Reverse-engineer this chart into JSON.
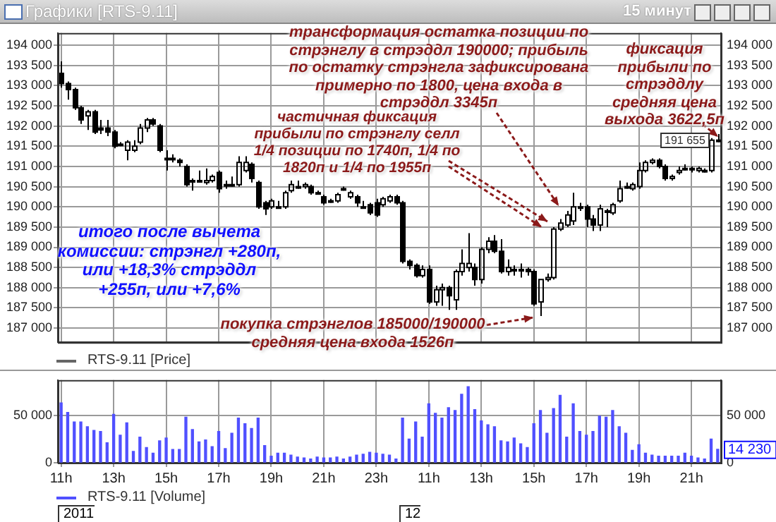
{
  "chart_data": [
    {
      "type": "candlestick",
      "title": "Графики [RTS-9.11]",
      "subtitle": "15 минут",
      "categories": [
        null,
        null,
        null,
        null,
        null,
        null,
        null,
        null,
        null,
        null,
        null,
        null,
        null,
        null,
        null,
        null,
        null,
        null,
        null,
        null,
        null,
        null,
        null,
        null,
        null,
        null,
        null,
        null,
        null,
        null,
        null,
        null,
        null,
        null,
        null,
        null,
        null,
        null,
        null,
        null,
        null,
        null,
        null,
        null,
        null,
        null,
        null,
        null,
        null,
        null,
        null,
        null,
        null,
        null,
        null,
        null,
        null,
        null,
        null,
        null,
        null,
        null,
        null,
        null,
        null,
        null,
        null,
        null,
        null,
        null,
        null,
        null,
        null,
        null,
        null,
        null,
        null,
        null,
        null,
        null,
        null,
        null,
        null,
        null,
        null,
        null,
        null,
        null,
        null,
        null,
        null,
        null,
        null,
        null,
        null,
        null,
        null,
        null,
        null,
        null,
        null
      ],
      "series": [
        {
          "name": "RTS-9.11 [Price]",
          "color": "#000000",
          "ohlc": [
            [
              193300,
              193600,
              192950,
              193050
            ],
            [
              193050,
              193100,
              192650,
              192900
            ],
            [
              192900,
              192950,
              192400,
              192450
            ],
            [
              192450,
              192500,
              192050,
              192150
            ],
            [
              192250,
              192400,
              191900,
              192350
            ],
            [
              192350,
              192400,
              191800,
              191850
            ],
            [
              191950,
              192150,
              191800,
              191900
            ],
            [
              191950,
              192150,
              191750,
              191850
            ],
            [
              191850,
              191900,
              191450,
              191500
            ],
            [
              191550,
              191600,
              191500,
              191550
            ],
            [
              191400,
              191650,
              191150,
              191600
            ],
            [
              191400,
              191650,
              191350,
              191500
            ],
            [
              191600,
              192050,
              191550,
              191950
            ],
            [
              191950,
              192200,
              191850,
              192150
            ],
            [
              192150,
              192200,
              192000,
              192050
            ],
            [
              192000,
              192050,
              191350,
              191400
            ],
            [
              191200,
              191400,
              190900,
              191200
            ],
            [
              191200,
              191300,
              191100,
              191200
            ],
            [
              191150,
              191200,
              191000,
              191100
            ],
            [
              191000,
              191050,
              190500,
              190550
            ],
            [
              190650,
              190700,
              190400,
              190650
            ],
            [
              190650,
              190900,
              190600,
              190650
            ],
            [
              190600,
              190950,
              190550,
              190650
            ],
            [
              190650,
              190800,
              190600,
              190750
            ],
            [
              190850,
              190900,
              190350,
              190450
            ],
            [
              190550,
              190650,
              190450,
              190550
            ],
            [
              190550,
              190750,
              190500,
              190550
            ],
            [
              190550,
              191250,
              190500,
              191100
            ],
            [
              190900,
              191250,
              190850,
              191100
            ],
            [
              191050,
              191100,
              190600,
              190700
            ],
            [
              190600,
              190650,
              189950,
              190000
            ],
            [
              190100,
              190150,
              189800,
              189950
            ],
            [
              190000,
              190200,
              189950,
              190150
            ],
            [
              190000,
              190150,
              189950,
              190000
            ],
            [
              190000,
              190400,
              189950,
              190350
            ],
            [
              190400,
              190650,
              190350,
              190550
            ],
            [
              190500,
              190650,
              190450,
              190500
            ],
            [
              190500,
              190600,
              190450,
              190550
            ],
            [
              190500,
              190550,
              190300,
              190350
            ],
            [
              190350,
              190400,
              190300,
              190350
            ],
            [
              190250,
              190300,
              190050,
              190100
            ],
            [
              190150,
              190200,
              190100,
              190150
            ],
            [
              190150,
              190350,
              190100,
              190300
            ],
            [
              190450,
              190500,
              190400,
              190450
            ],
            [
              190250,
              190400,
              190200,
              190350
            ],
            [
              190250,
              190300,
              190000,
              190100
            ],
            [
              190000,
              190150,
              189950,
              190000
            ],
            [
              190050,
              190100,
              189800,
              189850
            ],
            [
              190100,
              190200,
              189750,
              189800
            ],
            [
              190050,
              190250,
              190000,
              190200
            ],
            [
              190150,
              190300,
              190100,
              190250
            ],
            [
              190250,
              190300,
              190050,
              190100
            ],
            [
              190100,
              190150,
              188600,
              188650
            ],
            [
              188650,
              188700,
              188450,
              188550
            ],
            [
              188550,
              188600,
              188250,
              188300
            ],
            [
              188300,
              188550,
              188250,
              188450
            ],
            [
              188450,
              188550,
              187600,
              187650
            ],
            [
              187650,
              188050,
              187550,
              187950
            ],
            [
              187950,
              188100,
              187550,
              188000
            ],
            [
              188000,
              188050,
              187450,
              187800
            ],
            [
              187700,
              188450,
              187450,
              188400
            ],
            [
              188400,
              188950,
              188300,
              188600
            ],
            [
              188500,
              189350,
              188400,
              188600
            ],
            [
              188500,
              188600,
              188050,
              188200
            ],
            [
              188200,
              189000,
              188100,
              188950
            ],
            [
              188950,
              189250,
              188850,
              189150
            ],
            [
              189150,
              189300,
              188850,
              188900
            ],
            [
              188900,
              189200,
              188350,
              188400
            ],
            [
              188400,
              188700,
              188300,
              188500
            ],
            [
              188450,
              188550,
              188300,
              188450
            ],
            [
              188450,
              188600,
              188250,
              188450
            ],
            [
              188450,
              188500,
              188300,
              188400
            ],
            [
              188400,
              188450,
              187550,
              187600
            ],
            [
              187650,
              188200,
              187300,
              188200
            ],
            [
              188200,
              188350,
              188150,
              188250
            ],
            [
              188250,
              189500,
              188200,
              189450
            ],
            [
              189450,
              189700,
              189400,
              189600
            ],
            [
              189550,
              189900,
              189500,
              189800
            ],
            [
              189650,
              190350,
              189550,
              190000
            ],
            [
              190000,
              190100,
              189900,
              190000
            ],
            [
              190000,
              190050,
              189500,
              189700
            ],
            [
              189700,
              189800,
              189400,
              189550
            ],
            [
              189550,
              190050,
              189400,
              189950
            ],
            [
              189900,
              189950,
              189500,
              189900
            ],
            [
              189850,
              190100,
              189800,
              190050
            ],
            [
              190150,
              190650,
              190100,
              190450
            ],
            [
              190500,
              190600,
              190450,
              190500
            ],
            [
              190450,
              190600,
              190400,
              190550
            ],
            [
              190500,
              191100,
              190450,
              190900
            ],
            [
              190900,
              191150,
              190850,
              191100
            ],
            [
              191100,
              191200,
              191050,
              191150
            ],
            [
              191150,
              191200,
              190950,
              191000
            ],
            [
              191000,
              191050,
              190650,
              190700
            ],
            [
              190700,
              190800,
              190650,
              190750
            ],
            [
              190850,
              191000,
              190800,
              190900
            ],
            [
              190950,
              191050,
              190900,
              190950
            ],
            [
              190950,
              191000,
              190850,
              190950
            ],
            [
              190900,
              191000,
              190850,
              190950
            ],
            [
              190900,
              190950,
              190850,
              190900
            ],
            [
              190900,
              191700,
              190850,
              191650
            ],
            [
              191650,
              191800,
              191600,
              191650
            ]
          ]
        }
      ],
      "ylim": [
        186650,
        194300
      ],
      "yticks": [
        {
          "value": 187000,
          "label": "187 000"
        },
        {
          "value": 187500,
          "label": "187 500"
        },
        {
          "value": 188000,
          "label": "188 000"
        },
        {
          "value": 188500,
          "label": "188 500"
        },
        {
          "value": 189000,
          "label": "189 000"
        },
        {
          "value": 189500,
          "label": "189 500"
        },
        {
          "value": 190000,
          "label": "190 000"
        },
        {
          "value": 190500,
          "label": "190 500"
        },
        {
          "value": 191000,
          "label": "191 000"
        },
        {
          "value": 191500,
          "label": "191 500"
        },
        {
          "value": 192000,
          "label": "192 000"
        },
        {
          "value": 192500,
          "label": "192 500"
        },
        {
          "value": 193000,
          "label": "193 000"
        },
        {
          "value": 193500,
          "label": "193 500"
        },
        {
          "value": 194000,
          "label": "194 000"
        }
      ],
      "y2lim": [
        186650,
        194300
      ],
      "y2ticks": [
        {
          "value": 187000,
          "label": "187 000"
        },
        {
          "value": 187500,
          "label": "187 500"
        },
        {
          "value": 188000,
          "label": "188 000"
        },
        {
          "value": 188500,
          "label": "188 500"
        },
        {
          "value": 189000,
          "label": "189 000"
        },
        {
          "value": 189500,
          "label": "189 500"
        },
        {
          "value": 190000,
          "label": "190 000"
        },
        {
          "value": 190500,
          "label": "190 500"
        },
        {
          "value": 191000,
          "label": "191 000"
        },
        {
          "value": 191500,
          "label": "191 500"
        },
        {
          "value": 192000,
          "label": "192 000"
        },
        {
          "value": 192500,
          "label": "192 500"
        },
        {
          "value": 193000,
          "label": "193 000"
        },
        {
          "value": 193500,
          "label": "193 500"
        },
        {
          "value": 194000,
          "label": "194 000"
        }
      ],
      "grid": true,
      "legend": "bottom left",
      "tick_labels": "y",
      "annotations": [
        "трансформация остатка позиции по стрэнглу в стрэддл 190000; прибыль по остатку стрэнгла зафиксирована примерно по 1800, цена входа в стрэддл 3345п",
        "частичная фиксация прибыли по стрэнглу селл 1/4 позиции по 1740п, 1/4 по 1820п и 1/4 по 1955п",
        "фиксация прибыли по стрэддлу средняя цена выхода 3622,5п",
        "покупка стрэнглов 185000/190000 средняя цена входа 1526п",
        "итого после вычета комиссии: стрэнгл +280п, или +18,3% стрэддл +255п, или +7,6%",
        {
          "text": "191 655",
          "y": 191655
        }
      ]
    },
    {
      "type": "bar",
      "categories": [
        "11h",
        null,
        null,
        null,
        null,
        null,
        null,
        null,
        "13h",
        null,
        null,
        null,
        null,
        null,
        null,
        null,
        "15h",
        null,
        null,
        null,
        null,
        null,
        null,
        null,
        "17h",
        null,
        null,
        null,
        null,
        null,
        null,
        null,
        "19h",
        null,
        null,
        null,
        null,
        null,
        null,
        null,
        "21h",
        null,
        null,
        null,
        null,
        null,
        null,
        null,
        "23h",
        null,
        null,
        null,
        null,
        null,
        null,
        null,
        "11h",
        null,
        null,
        null,
        null,
        null,
        null,
        null,
        "13h",
        null,
        null,
        null,
        null,
        null,
        null,
        null,
        "15h",
        null,
        null,
        null,
        null,
        null,
        null,
        null,
        "17h",
        null,
        null,
        null,
        null,
        null,
        null,
        null,
        "19h",
        null,
        null,
        null,
        null,
        null,
        null,
        null,
        "21h",
        null,
        null,
        null,
        null
      ],
      "series": [
        {
          "name": "RTS-9.11 [Volume]",
          "color": "#5050ff",
          "values": [
            63000,
            53000,
            43000,
            43000,
            38000,
            34000,
            33000,
            21000,
            51000,
            29000,
            42000,
            12000,
            27000,
            16000,
            10000,
            23000,
            26000,
            14000,
            14000,
            48000,
            35000,
            22000,
            24000,
            17000,
            33000,
            15000,
            31000,
            47000,
            41000,
            36000,
            47000,
            18000,
            7000,
            10000,
            10000,
            8000,
            6000,
            5000,
            4000,
            6000,
            5000,
            5000,
            6000,
            4000,
            6000,
            8000,
            9000,
            11000,
            10000,
            9000,
            8000,
            4000,
            47000,
            25000,
            43000,
            27000,
            62000,
            52000,
            47000,
            58000,
            55000,
            72000,
            80000,
            56000,
            44000,
            40000,
            38000,
            23000,
            22000,
            26000,
            20000,
            16000,
            41000,
            55000,
            31000,
            57000,
            71000,
            27000,
            62000,
            33000,
            29000,
            33000,
            49000,
            48000,
            55000,
            38000,
            31000,
            13000,
            19000,
            10000,
            8000,
            7000,
            7000,
            7000,
            7000,
            10000,
            7000,
            5000,
            4000,
            25000,
            14230
          ]
        }
      ],
      "ylim": [
        0,
        87000
      ],
      "yticks": [
        0,
        {
          "value": 50000,
          "label": "50 000"
        }
      ],
      "y2lim": [
        0,
        87000
      ],
      "y2ticks": [
        0,
        {
          "value": 50000,
          "label": "50 000"
        }
      ],
      "grid": true,
      "legend": "bottom left",
      "annotations": [
        {
          "text": "14 230",
          "y": 14230
        },
        "2011",
        "12"
      ]
    }
  ]
}
